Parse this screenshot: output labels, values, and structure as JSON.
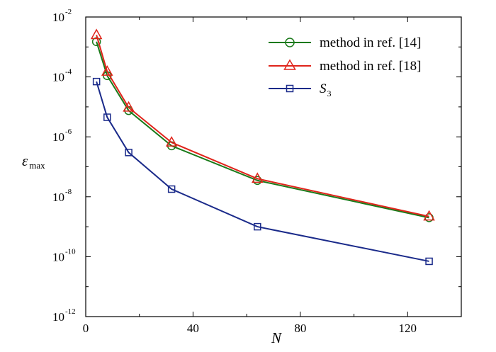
{
  "chart_data": {
    "type": "line",
    "xlabel": "N",
    "ylabel": {
      "base": "ε",
      "sub": "max"
    },
    "xlim": [
      0,
      140
    ],
    "ylim": [
      1e-12,
      0.01
    ],
    "yscale": "log",
    "x_ticks": [
      0,
      40,
      80,
      120
    ],
    "x_tick_labels": [
      "0",
      "40",
      "80",
      "120"
    ],
    "y_ticks": [
      {
        "value": 0.01,
        "base": "10",
        "exp": "-2"
      },
      {
        "value": 0.0001,
        "base": "10",
        "exp": "-4"
      },
      {
        "value": 1e-06,
        "base": "10",
        "exp": "-6"
      },
      {
        "value": 1e-08,
        "base": "10",
        "exp": "-8"
      },
      {
        "value": 1e-10,
        "base": "10",
        "exp": "-10"
      },
      {
        "value": 1e-12,
        "base": "10",
        "exp": "-12"
      }
    ],
    "legend_position": "top-right",
    "grid": false,
    "x": [
      4,
      8,
      16,
      32,
      64,
      128
    ],
    "series": [
      {
        "name": "method in ref. [14]",
        "color": "#1a7a1a",
        "marker": "circle",
        "values": [
          0.0015,
          0.00011,
          7.5e-06,
          5e-07,
          3.5e-08,
          2e-09
        ]
      },
      {
        "name": "method in ref. [18]",
        "color": "#e0241b",
        "marker": "triangle",
        "values": [
          0.0025,
          0.00015,
          9.5e-06,
          6.5e-07,
          4e-08,
          2.2e-09
        ]
      },
      {
        "name": "S",
        "name_sub": "3",
        "color": "#1a2a8a",
        "marker": "square",
        "values": [
          7e-05,
          4.5e-06,
          3e-07,
          1.8e-08,
          1e-09,
          7e-11
        ]
      }
    ]
  }
}
